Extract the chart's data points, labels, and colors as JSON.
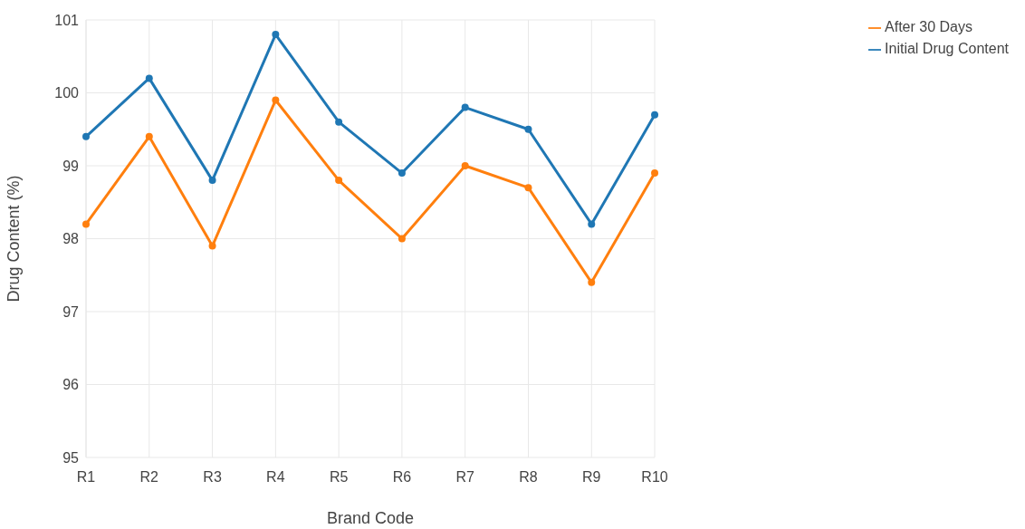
{
  "chart_data": {
    "type": "line",
    "xlabel": "Brand Code",
    "ylabel": "Drug Content (%)",
    "categories": [
      "R1",
      "R2",
      "R3",
      "R4",
      "R5",
      "R6",
      "R7",
      "R8",
      "R9",
      "R10"
    ],
    "series": [
      {
        "name": "Initial Drug Content",
        "color": "#1f77b4",
        "values": [
          99.4,
          100.2,
          98.8,
          100.8,
          99.6,
          98.9,
          99.8,
          99.5,
          98.2,
          99.7
        ]
      },
      {
        "name": "After 30 Days",
        "color": "#ff7f0e",
        "values": [
          98.2,
          99.4,
          97.9,
          99.9,
          98.8,
          98.0,
          99.0,
          98.7,
          97.4,
          98.9
        ]
      }
    ],
    "ylim": [
      95,
      101
    ],
    "yticks": [
      95,
      96,
      97,
      98,
      99,
      100,
      101
    ],
    "grid": true,
    "legend": "top right",
    "marker": "circle",
    "line_style": "solid"
  }
}
